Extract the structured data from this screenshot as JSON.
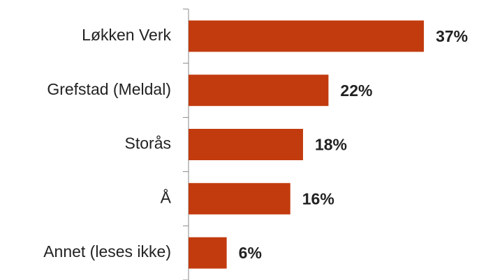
{
  "chart_data": {
    "type": "bar",
    "orientation": "horizontal",
    "categories": [
      "Løkken Verk",
      "Grefstad (Meldal)",
      "Storås",
      "Å",
      "Annet (leses ikke)"
    ],
    "values": [
      37,
      22,
      18,
      16,
      6
    ],
    "value_labels": [
      "37%",
      "22%",
      "18%",
      "16%",
      "6%"
    ],
    "color": "#c23b0e"
  }
}
